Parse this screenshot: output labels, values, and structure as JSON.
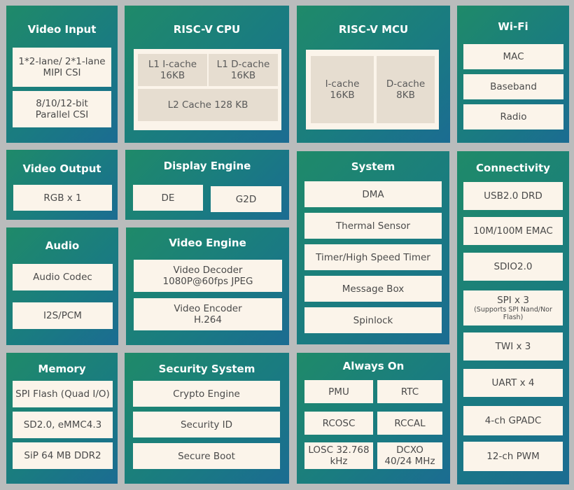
{
  "video_input": {
    "title": "Video Input",
    "items": [
      "1*2-lane/ 2*1-lane\nMIPI CSI",
      "8/10/12-bit\nParallel CSI"
    ]
  },
  "riscv_cpu": {
    "title": "RISC-V CPU",
    "l1_icache": "L1 I-cache\n16KB",
    "l1_dcache": "L1 D-cache\n16KB",
    "l2_cache": "L2 Cache 128 KB"
  },
  "riscv_mcu": {
    "title": "RISC-V MCU",
    "icache": "I-cache\n16KB",
    "dcache": "D-cache\n8KB"
  },
  "wifi": {
    "title": "Wi-Fi",
    "items": [
      "MAC",
      "Baseband",
      "Radio"
    ]
  },
  "video_output": {
    "title": "Video Output",
    "items": [
      "RGB x 1"
    ]
  },
  "display_engine": {
    "title": "Display Engine",
    "items": [
      "DE",
      "G2D"
    ]
  },
  "system": {
    "title": "System",
    "items": [
      "DMA",
      "Thermal Sensor",
      "Timer/High Speed Timer",
      "Message Box",
      "Spinlock"
    ]
  },
  "connectivity": {
    "title": "Connectivity",
    "items": [
      "USB2.0 DRD",
      "10M/100M EMAC",
      "SDIO2.0",
      "SPI x 3",
      "TWI x 3",
      "UART x 4",
      "4-ch GPADC",
      "12-ch PWM"
    ],
    "spi_note": "(Supports SPI Nand/Nor\nFlash)"
  },
  "audio": {
    "title": "Audio",
    "items": [
      "Audio Codec",
      "I2S/PCM"
    ]
  },
  "video_engine": {
    "title": "Video Engine",
    "items": [
      "Video Decoder\n1080P@60fps JPEG",
      "Video Encoder\nH.264"
    ]
  },
  "memory": {
    "title": "Memory",
    "items": [
      "SPI Flash (Quad I/O)",
      "SD2.0, eMMC4.3",
      "SiP 64 MB DDR2"
    ]
  },
  "security": {
    "title": "Security System",
    "items": [
      "Crypto Engine",
      "Security ID",
      "Secure Boot"
    ]
  },
  "always_on": {
    "title": "Always On",
    "items": [
      "PMU",
      "RTC",
      "RCOSC",
      "RCCAL",
      "LOSC 32.768\nkHz",
      "DCXO\n40/24 MHz"
    ]
  }
}
